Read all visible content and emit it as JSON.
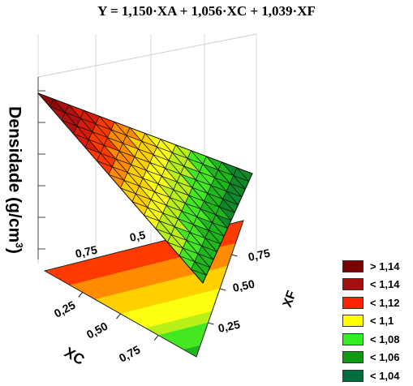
{
  "chart_data": {
    "type": "surface3d",
    "title": "Y = 1,150·XA + 1,056·XC + 1,039·XF",
    "zlabel": "Densidade (g/cm³)",
    "xlabel": "XC",
    "ylabel": "XF",
    "xticks": [
      "0,25",
      "0,50",
      "0,75"
    ],
    "yticks": [
      "0,25",
      "0,50",
      "0,75"
    ],
    "back_ticks": [
      "0,75",
      "0,5"
    ],
    "coefficients": {
      "XA": 1.15,
      "XC": 1.056,
      "XF": 1.039
    },
    "legend": [
      {
        "label": "> 1,14",
        "color": "#7b0000"
      },
      {
        "label": "< 1,14",
        "color": "#a50f0f"
      },
      {
        "label": "< 1,12",
        "color": "#ff2200"
      },
      {
        "label": "< 1,1",
        "color": "#ffff00"
      },
      {
        "label": "< 1,08",
        "color": "#33ee22"
      },
      {
        "label": "< 1,06",
        "color": "#0f9a14"
      },
      {
        "label": "< 1,04",
        "color": "#006e3c"
      }
    ]
  }
}
